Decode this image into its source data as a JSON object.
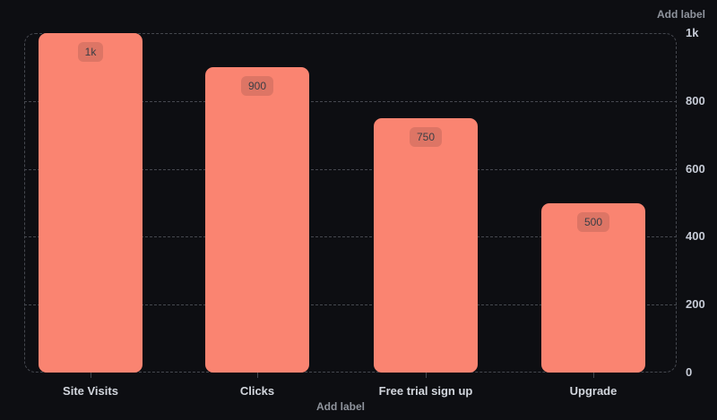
{
  "chart_data": {
    "type": "bar",
    "title": "",
    "xlabel": "",
    "ylabel": "",
    "categories": [
      "Site Visits",
      "Clicks",
      "Free trial sign up",
      "Upgrade"
    ],
    "values": [
      1000,
      900,
      750,
      500
    ],
    "value_labels": [
      "1k",
      "900",
      "750",
      "500"
    ],
    "ylim": [
      0,
      1000
    ],
    "yticks": [
      {
        "value": 1000,
        "label": "1k"
      },
      {
        "value": 800,
        "label": "800"
      },
      {
        "value": 600,
        "label": "600"
      },
      {
        "value": 400,
        "label": "400"
      },
      {
        "value": 200,
        "label": "200"
      },
      {
        "value": 0,
        "label": "0"
      }
    ],
    "grid": "horizontal-dashed",
    "legend": "none",
    "bar_color": "#fa8471",
    "badge_color": "#dd7565",
    "badge_text_color": "#3a3e45",
    "background": "#0d0e12"
  },
  "labels": {
    "add_label_top_right": "Add label",
    "add_label_bottom": "Add label"
  },
  "colors": {
    "grid_line": "#45484f",
    "axis_text": "#c7ccd7",
    "category_text": "#d2d6dd",
    "add_label_text": "#8f949d"
  }
}
